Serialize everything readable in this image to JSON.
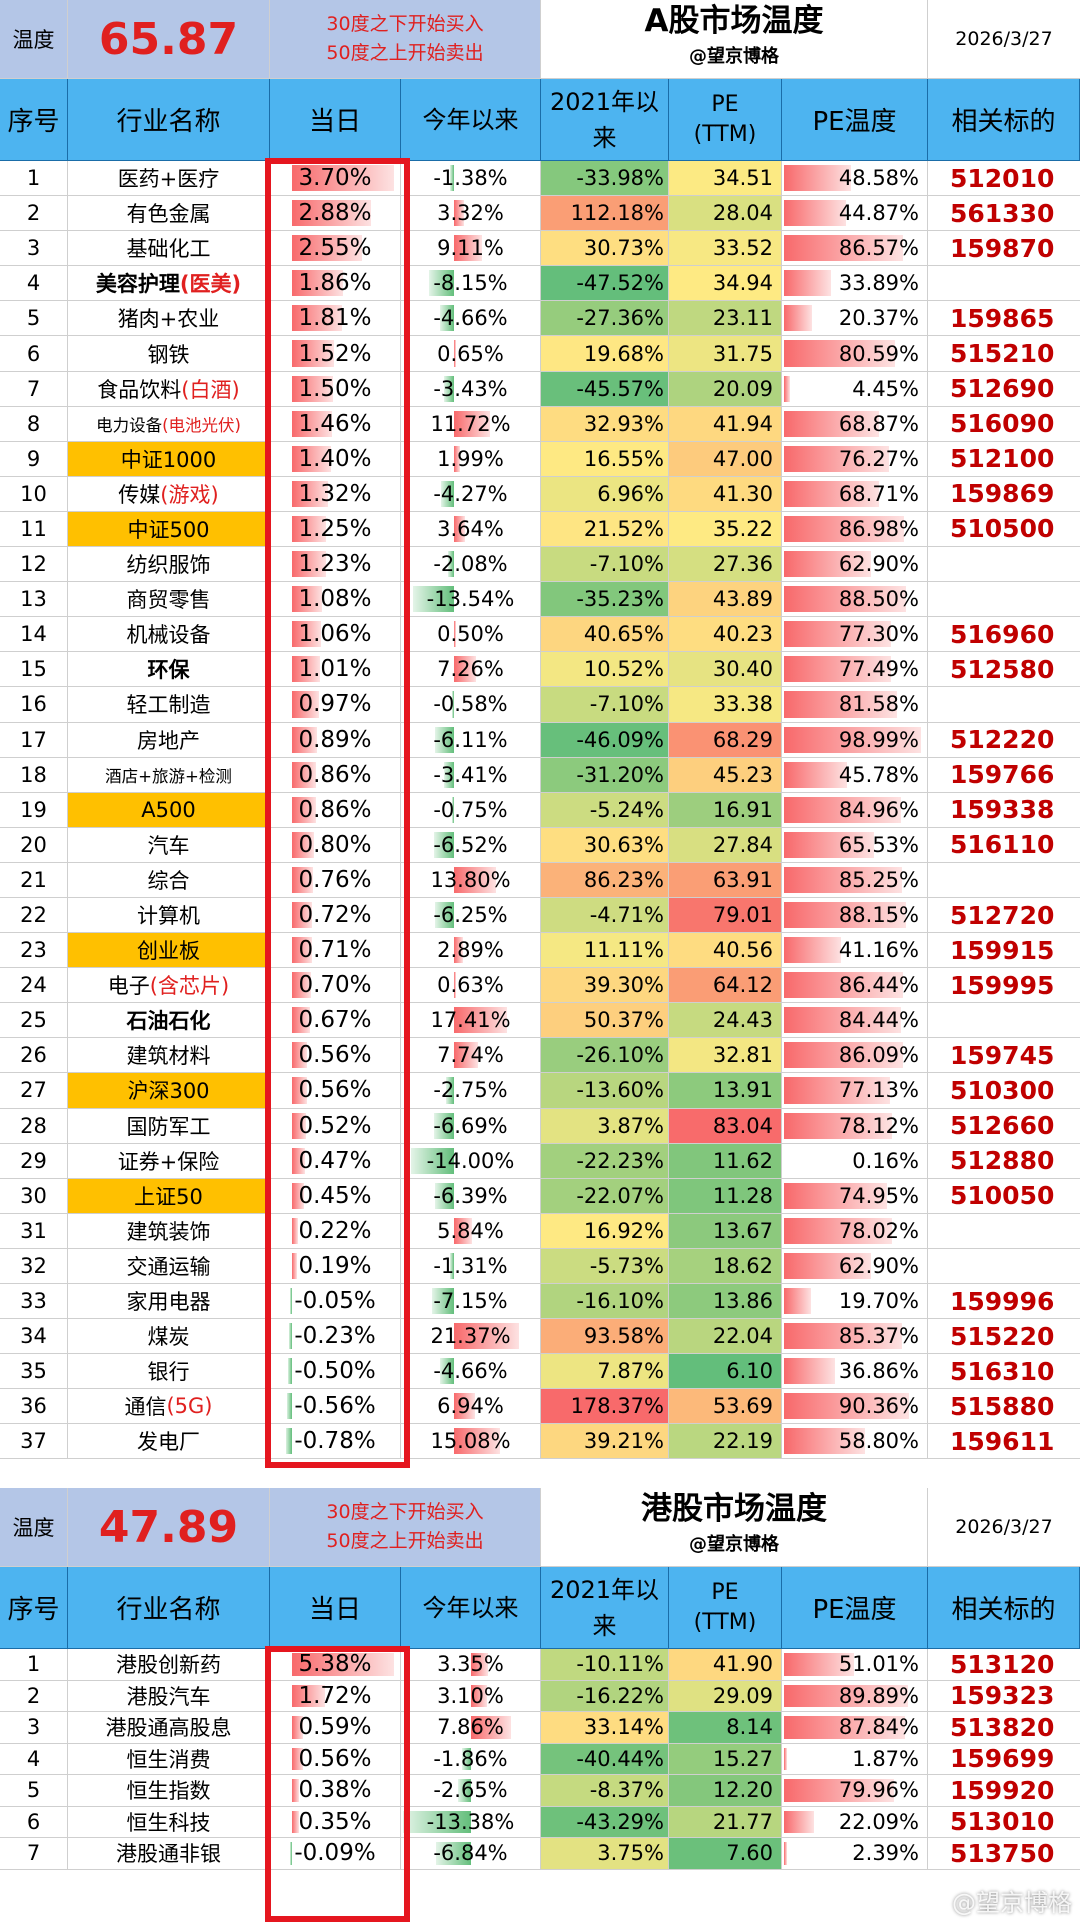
{
  "a": {
    "label": "温度",
    "temp": "65.87",
    "rule1": "30度之下开始买入",
    "rule2": "50度之上开始卖出",
    "title": "A股市场温度",
    "subtitle": "@望京博格",
    "date": "2026/3/27",
    "headers": [
      "序号",
      "行业名称",
      "当日",
      "今年以来",
      "2021年以来",
      "PE\n(TTM)",
      "PE温度",
      "相关标的"
    ],
    "rows": [
      {
        "n": "1",
        "name": [
          [
            "医药+医疗",
            ""
          ]
        ],
        "day": "3.70%",
        "dv": 3.7,
        "ytd": "-1.38%",
        "yv": -1.38,
        "s21": "-33.98%",
        "pe": "34.51",
        "pt": "48.58%",
        "pv": 48.58,
        "etf": "512010"
      },
      {
        "n": "2",
        "name": [
          [
            "有色金属",
            ""
          ]
        ],
        "day": "2.88%",
        "dv": 2.88,
        "ytd": "3.32%",
        "yv": 3.32,
        "s21": "112.18%",
        "pe": "28.04",
        "pt": "44.87%",
        "pv": 44.87,
        "etf": "561330"
      },
      {
        "n": "3",
        "name": [
          [
            "基础化工",
            ""
          ]
        ],
        "day": "2.55%",
        "dv": 2.55,
        "ytd": "9.11%",
        "yv": 9.11,
        "s21": "30.73%",
        "pe": "33.52",
        "pt": "86.57%",
        "pv": 86.57,
        "etf": "159870"
      },
      {
        "n": "4",
        "name": [
          [
            "美容护理",
            "b"
          ],
          [
            "(医美)",
            "rb"
          ]
        ],
        "day": "1.86%",
        "dv": 1.86,
        "ytd": "-8.15%",
        "yv": -8.15,
        "s21": "-47.52%",
        "pe": "34.94",
        "pt": "33.89%",
        "pv": 33.89,
        "etf": ""
      },
      {
        "n": "5",
        "name": [
          [
            "猪肉+农业",
            ""
          ]
        ],
        "day": "1.81%",
        "dv": 1.81,
        "ytd": "-4.66%",
        "yv": -4.66,
        "s21": "-27.36%",
        "pe": "23.11",
        "pt": "20.37%",
        "pv": 20.37,
        "etf": "159865"
      },
      {
        "n": "6",
        "name": [
          [
            "钢铁",
            ""
          ]
        ],
        "day": "1.52%",
        "dv": 1.52,
        "ytd": "0.65%",
        "yv": 0.65,
        "s21": "19.68%",
        "pe": "31.75",
        "pt": "80.59%",
        "pv": 80.59,
        "etf": "515210"
      },
      {
        "n": "7",
        "name": [
          [
            "食品饮料",
            ""
          ],
          [
            "(白酒)",
            "r"
          ]
        ],
        "day": "1.50%",
        "dv": 1.5,
        "ytd": "-3.43%",
        "yv": -3.43,
        "s21": "-45.57%",
        "pe": "20.09",
        "pt": "4.45%",
        "pv": 4.45,
        "etf": "512690"
      },
      {
        "n": "8",
        "name": [
          [
            "电力设备",
            ""
          ],
          [
            "(电池光伏)",
            "r"
          ]
        ],
        "small": true,
        "day": "1.46%",
        "dv": 1.46,
        "ytd": "11.72%",
        "yv": 11.72,
        "s21": "32.93%",
        "pe": "41.94",
        "pt": "68.87%",
        "pv": 68.87,
        "etf": "516090"
      },
      {
        "n": "9",
        "name": [
          [
            "中证1000",
            ""
          ]
        ],
        "gold": true,
        "day": "1.40%",
        "dv": 1.4,
        "ytd": "1.99%",
        "yv": 1.99,
        "s21": "16.55%",
        "pe": "47.00",
        "pt": "76.27%",
        "pv": 76.27,
        "etf": "512100"
      },
      {
        "n": "10",
        "name": [
          [
            "传媒",
            ""
          ],
          [
            "(游戏)",
            "r"
          ]
        ],
        "day": "1.32%",
        "dv": 1.32,
        "ytd": "-4.27%",
        "yv": -4.27,
        "s21": "6.96%",
        "pe": "41.30",
        "pt": "68.71%",
        "pv": 68.71,
        "etf": "159869"
      },
      {
        "n": "11",
        "name": [
          [
            "中证500",
            ""
          ]
        ],
        "gold": true,
        "day": "1.25%",
        "dv": 1.25,
        "ytd": "3.64%",
        "yv": 3.64,
        "s21": "21.52%",
        "pe": "35.22",
        "pt": "86.98%",
        "pv": 86.98,
        "etf": "510500"
      },
      {
        "n": "12",
        "name": [
          [
            "纺织服饰",
            ""
          ]
        ],
        "day": "1.23%",
        "dv": 1.23,
        "ytd": "-2.08%",
        "yv": -2.08,
        "s21": "-7.10%",
        "pe": "27.36",
        "pt": "62.90%",
        "pv": 62.9,
        "etf": ""
      },
      {
        "n": "13",
        "name": [
          [
            "商贸零售",
            ""
          ]
        ],
        "day": "1.08%",
        "dv": 1.08,
        "ytd": "-13.54%",
        "yv": -13.54,
        "s21": "-35.23%",
        "pe": "43.89",
        "pt": "88.50%",
        "pv": 88.5,
        "etf": ""
      },
      {
        "n": "14",
        "name": [
          [
            "机械设备",
            ""
          ]
        ],
        "day": "1.06%",
        "dv": 1.06,
        "ytd": "0.50%",
        "yv": 0.5,
        "s21": "40.65%",
        "pe": "40.23",
        "pt": "77.30%",
        "pv": 77.3,
        "etf": "516960"
      },
      {
        "n": "15",
        "name": [
          [
            "环保",
            "b"
          ]
        ],
        "day": "1.01%",
        "dv": 1.01,
        "ytd": "7.26%",
        "yv": 7.26,
        "s21": "10.52%",
        "pe": "30.40",
        "pt": "77.49%",
        "pv": 77.49,
        "etf": "512580"
      },
      {
        "n": "16",
        "name": [
          [
            "轻工制造",
            ""
          ]
        ],
        "day": "0.97%",
        "dv": 0.97,
        "ytd": "-0.58%",
        "yv": -0.58,
        "s21": "-7.10%",
        "pe": "33.38",
        "pt": "81.58%",
        "pv": 81.58,
        "etf": ""
      },
      {
        "n": "17",
        "name": [
          [
            "房地产",
            ""
          ]
        ],
        "day": "0.89%",
        "dv": 0.89,
        "ytd": "-6.11%",
        "yv": -6.11,
        "s21": "-46.09%",
        "pe": "68.29",
        "pt": "98.99%",
        "pv": 98.99,
        "etf": "512220"
      },
      {
        "n": "18",
        "name": [
          [
            "酒店+旅游+检测",
            ""
          ]
        ],
        "small": true,
        "day": "0.86%",
        "dv": 0.86,
        "ytd": "-3.41%",
        "yv": -3.41,
        "s21": "-31.20%",
        "pe": "45.23",
        "pt": "45.78%",
        "pv": 45.78,
        "etf": "159766"
      },
      {
        "n": "19",
        "name": [
          [
            "A500",
            ""
          ]
        ],
        "gold": true,
        "day": "0.86%",
        "dv": 0.86,
        "ytd": "-0.75%",
        "yv": -0.75,
        "s21": "-5.24%",
        "pe": "16.91",
        "pt": "84.96%",
        "pv": 84.96,
        "etf": "159338"
      },
      {
        "n": "20",
        "name": [
          [
            "汽车",
            ""
          ]
        ],
        "day": "0.80%",
        "dv": 0.8,
        "ytd": "-6.52%",
        "yv": -6.52,
        "s21": "30.63%",
        "pe": "27.84",
        "pt": "65.53%",
        "pv": 65.53,
        "etf": "516110"
      },
      {
        "n": "21",
        "name": [
          [
            "综合",
            ""
          ]
        ],
        "day": "0.76%",
        "dv": 0.76,
        "ytd": "13.80%",
        "yv": 13.8,
        "s21": "86.23%",
        "pe": "63.91",
        "pt": "85.25%",
        "pv": 85.25,
        "etf": ""
      },
      {
        "n": "22",
        "name": [
          [
            "计算机",
            ""
          ]
        ],
        "day": "0.72%",
        "dv": 0.72,
        "ytd": "-6.25%",
        "yv": -6.25,
        "s21": "-4.71%",
        "pe": "79.01",
        "pt": "88.15%",
        "pv": 88.15,
        "etf": "512720"
      },
      {
        "n": "23",
        "name": [
          [
            "创业板",
            ""
          ]
        ],
        "gold": true,
        "day": "0.71%",
        "dv": 0.71,
        "ytd": "2.89%",
        "yv": 2.89,
        "s21": "11.11%",
        "pe": "40.56",
        "pt": "41.16%",
        "pv": 41.16,
        "etf": "159915"
      },
      {
        "n": "24",
        "name": [
          [
            "电子",
            ""
          ],
          [
            "(含芯片)",
            "r"
          ]
        ],
        "day": "0.70%",
        "dv": 0.7,
        "ytd": "0.63%",
        "yv": 0.63,
        "s21": "39.30%",
        "pe": "64.12",
        "pt": "86.44%",
        "pv": 86.44,
        "etf": "159995"
      },
      {
        "n": "25",
        "name": [
          [
            "石油石化",
            "b"
          ]
        ],
        "day": "0.67%",
        "dv": 0.67,
        "ytd": "17.41%",
        "yv": 17.41,
        "s21": "50.37%",
        "pe": "24.43",
        "pt": "84.44%",
        "pv": 84.44,
        "etf": ""
      },
      {
        "n": "26",
        "name": [
          [
            "建筑材料",
            ""
          ]
        ],
        "day": "0.56%",
        "dv": 0.56,
        "ytd": "7.74%",
        "yv": 7.74,
        "s21": "-26.10%",
        "pe": "32.81",
        "pt": "86.09%",
        "pv": 86.09,
        "etf": "159745"
      },
      {
        "n": "27",
        "name": [
          [
            "沪深300",
            ""
          ]
        ],
        "gold": true,
        "day": "0.56%",
        "dv": 0.56,
        "ytd": "-2.75%",
        "yv": -2.75,
        "s21": "-13.60%",
        "pe": "13.91",
        "pt": "77.13%",
        "pv": 77.13,
        "etf": "510300"
      },
      {
        "n": "28",
        "name": [
          [
            "国防军工",
            ""
          ]
        ],
        "day": "0.52%",
        "dv": 0.52,
        "ytd": "-6.69%",
        "yv": -6.69,
        "s21": "3.87%",
        "pe": "83.04",
        "pt": "78.12%",
        "pv": 78.12,
        "etf": "512660"
      },
      {
        "n": "29",
        "name": [
          [
            "证券+保险",
            ""
          ]
        ],
        "day": "0.47%",
        "dv": 0.47,
        "ytd": "-14.00%",
        "yv": -14.0,
        "s21": "-22.23%",
        "pe": "11.62",
        "pt": "0.16%",
        "pv": 0.16,
        "etf": "512880"
      },
      {
        "n": "30",
        "name": [
          [
            "上证50",
            ""
          ]
        ],
        "gold": true,
        "day": "0.45%",
        "dv": 0.45,
        "ytd": "-6.39%",
        "yv": -6.39,
        "s21": "-22.07%",
        "pe": "11.28",
        "pt": "74.95%",
        "pv": 74.95,
        "etf": "510050"
      },
      {
        "n": "31",
        "name": [
          [
            "建筑装饰",
            ""
          ]
        ],
        "day": "0.22%",
        "dv": 0.22,
        "ytd": "5.84%",
        "yv": 5.84,
        "s21": "16.92%",
        "pe": "13.67",
        "pt": "78.02%",
        "pv": 78.02,
        "etf": ""
      },
      {
        "n": "32",
        "name": [
          [
            "交通运输",
            ""
          ]
        ],
        "day": "0.19%",
        "dv": 0.19,
        "ytd": "-1.31%",
        "yv": -1.31,
        "s21": "-5.73%",
        "pe": "18.62",
        "pt": "62.90%",
        "pv": 62.9,
        "etf": ""
      },
      {
        "n": "33",
        "name": [
          [
            "家用电器",
            ""
          ]
        ],
        "day": "-0.05%",
        "dv": -0.05,
        "ytd": "-7.15%",
        "yv": -7.15,
        "s21": "-16.10%",
        "pe": "13.86",
        "pt": "19.70%",
        "pv": 19.7,
        "etf": "159996"
      },
      {
        "n": "34",
        "name": [
          [
            "煤炭",
            ""
          ]
        ],
        "day": "-0.23%",
        "dv": -0.23,
        "ytd": "21.37%",
        "yv": 21.37,
        "s21": "93.58%",
        "pe": "22.04",
        "pt": "85.37%",
        "pv": 85.37,
        "etf": "515220"
      },
      {
        "n": "35",
        "name": [
          [
            "银行",
            ""
          ]
        ],
        "day": "-0.50%",
        "dv": -0.5,
        "ytd": "-4.66%",
        "yv": -4.66,
        "s21": "7.87%",
        "pe": "6.10",
        "pt": "36.86%",
        "pv": 36.86,
        "etf": "516310"
      },
      {
        "n": "36",
        "name": [
          [
            "通信",
            ""
          ],
          [
            "(5G)",
            "r"
          ]
        ],
        "day": "-0.56%",
        "dv": -0.56,
        "ytd": "6.94%",
        "yv": 6.94,
        "s21": "178.37%",
        "pe": "53.69",
        "pt": "90.36%",
        "pv": 90.36,
        "etf": "515880"
      },
      {
        "n": "37",
        "name": [
          [
            "发电厂",
            ""
          ]
        ],
        "day": "-0.78%",
        "dv": -0.78,
        "ytd": "15.08%",
        "yv": 15.08,
        "s21": "39.21%",
        "pe": "22.19",
        "pt": "58.80%",
        "pv": 58.8,
        "etf": "159611"
      }
    ]
  },
  "h": {
    "label": "温度",
    "temp": "47.89",
    "rule1": "30度之下开始买入",
    "rule2": "50度之上开始卖出",
    "title": "港股市场温度",
    "subtitle": "@望京博格",
    "date": "2026/3/27",
    "headers": [
      "序号",
      "行业名称",
      "当日",
      "今年以来",
      "2021年以来",
      "PE\n(TTM)",
      "PE温度",
      "相关标的"
    ],
    "rows": [
      {
        "n": "1",
        "name": [
          [
            "港股创新药",
            ""
          ]
        ],
        "day": "5.38%",
        "dv": 5.38,
        "ytd": "3.35%",
        "yv": 3.35,
        "s21": "-10.11%",
        "pe": "41.90",
        "pt": "51.01%",
        "pv": 51.01,
        "etf": "513120"
      },
      {
        "n": "2",
        "name": [
          [
            "港股汽车",
            ""
          ]
        ],
        "day": "1.72%",
        "dv": 1.72,
        "ytd": "3.10%",
        "yv": 3.1,
        "s21": "-16.22%",
        "pe": "29.09",
        "pt": "89.89%",
        "pv": 89.89,
        "etf": "159323"
      },
      {
        "n": "3",
        "name": [
          [
            "港股通高股息",
            ""
          ]
        ],
        "day": "0.59%",
        "dv": 0.59,
        "ytd": "7.86%",
        "yv": 7.86,
        "s21": "33.14%",
        "pe": "8.14",
        "pt": "87.84%",
        "pv": 87.84,
        "etf": "513820"
      },
      {
        "n": "4",
        "name": [
          [
            "恒生消费",
            ""
          ]
        ],
        "day": "0.56%",
        "dv": 0.56,
        "ytd": "-1.86%",
        "yv": -1.86,
        "s21": "-40.44%",
        "pe": "15.27",
        "pt": "1.87%",
        "pv": 1.87,
        "etf": "159699"
      },
      {
        "n": "5",
        "name": [
          [
            "恒生指数",
            ""
          ]
        ],
        "day": "0.38%",
        "dv": 0.38,
        "ytd": "-2.65%",
        "yv": -2.65,
        "s21": "-8.37%",
        "pe": "12.20",
        "pt": "79.96%",
        "pv": 79.96,
        "etf": "159920"
      },
      {
        "n": "6",
        "name": [
          [
            "恒生科技",
            ""
          ]
        ],
        "day": "0.35%",
        "dv": 0.35,
        "ytd": "-13.38%",
        "yv": -13.38,
        "s21": "-43.29%",
        "pe": "21.77",
        "pt": "22.09%",
        "pv": 22.09,
        "etf": "513010"
      },
      {
        "n": "7",
        "name": [
          [
            "港股通非银",
            ""
          ]
        ],
        "day": "-0.09%",
        "dv": -0.09,
        "ytd": "-6.84%",
        "yv": -6.84,
        "s21": "3.75%",
        "pe": "7.60",
        "pt": "2.39%",
        "pv": 2.39,
        "etf": "513750"
      }
    ]
  },
  "watermark": "@望京博格"
}
